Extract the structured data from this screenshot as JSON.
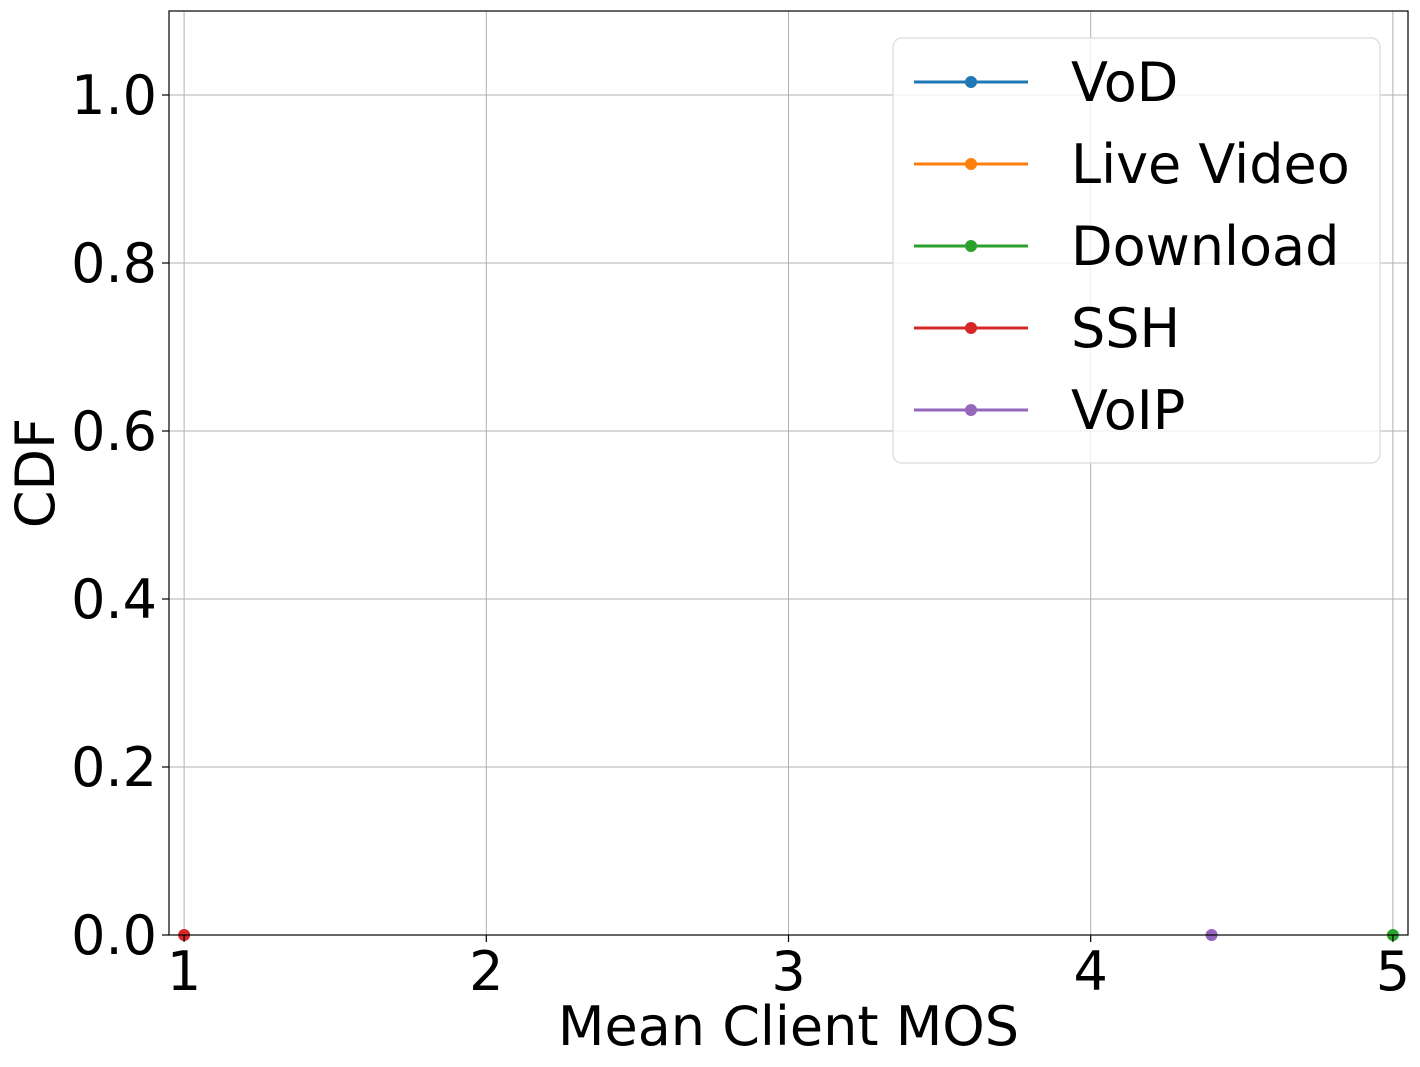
{
  "chart_data": {
    "type": "line",
    "title": "",
    "xlabel": "Mean Client MOS",
    "ylabel": "CDF",
    "xlim": [
      0.95,
      5.05
    ],
    "ylim": [
      0,
      1.1
    ],
    "x_ticks": [
      1,
      2,
      3,
      4,
      5
    ],
    "x_tick_labels": [
      "1",
      "2",
      "3",
      "4",
      "5"
    ],
    "y_ticks": [
      0.0,
      0.2,
      0.4,
      0.6,
      0.8,
      1.0
    ],
    "y_tick_labels": [
      "0.0",
      "0.2",
      "0.4",
      "0.6",
      "0.8",
      "1.0"
    ],
    "grid": true,
    "legend_position": "top-right",
    "series": [
      {
        "name": "VoD",
        "color": "#1f77b4",
        "marker": "circle",
        "points": []
      },
      {
        "name": "Live Video",
        "color": "#ff7f0e",
        "marker": "circle",
        "points": []
      },
      {
        "name": "Download",
        "color": "#2ca02c",
        "marker": "circle",
        "points": [
          {
            "x": 5.0,
            "y": 0.0
          }
        ]
      },
      {
        "name": "SSH",
        "color": "#d62728",
        "marker": "circle",
        "points": [
          {
            "x": 1.0,
            "y": 0.0
          }
        ]
      },
      {
        "name": "VoIP",
        "color": "#9467bd",
        "marker": "circle",
        "points": [
          {
            "x": 4.4,
            "y": 0.0
          }
        ]
      }
    ]
  }
}
